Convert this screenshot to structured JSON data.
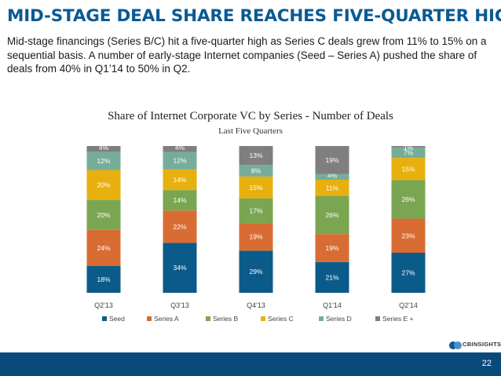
{
  "slide": {
    "headline": "MID-STAGE DEAL SHARE REACHES FIVE-QUARTER HIGH",
    "intro": "Mid-stage financings (Series B/C) hit a five-quarter high as Series C deals grew from 11% to 15% on a sequential basis. A number of early-stage Internet companies (Seed – Series A) pushed the share of deals from 40% in Q1’14 to 50% in Q2.",
    "logo_text": "CBINSIGHTS",
    "page_number": "22"
  },
  "chart_data": {
    "type": "bar",
    "stacked": true,
    "title": "Share of Internet Corporate VC by Series - Number of Deals",
    "subtitle": "Last Five Quarters",
    "categories": [
      "Q2'13",
      "Q3'13",
      "Q4'13",
      "Q1'14",
      "Q2'14"
    ],
    "series": [
      {
        "name": "Seed",
        "color": "#0b5b8a",
        "values": [
          18,
          34,
          29,
          21,
          27
        ],
        "labels": [
          "18%",
          "34%",
          "29%",
          "21%",
          "27%"
        ]
      },
      {
        "name": "Series A",
        "color": "#d96c32",
        "values": [
          24,
          22,
          19,
          19,
          23
        ],
        "labels": [
          "24%",
          "22%",
          "19%",
          "19%",
          "23%"
        ]
      },
      {
        "name": "Series B",
        "color": "#7aa651",
        "values": [
          20,
          14,
          17,
          26,
          26
        ],
        "labels": [
          "20%",
          "14%",
          "17%",
          "26%",
          "26%"
        ]
      },
      {
        "name": "Series C",
        "color": "#e8b00f",
        "values": [
          20,
          14,
          15,
          11,
          15
        ],
        "labels": [
          "20%",
          "14%",
          "15%",
          "11%",
          "15%"
        ]
      },
      {
        "name": "Series D",
        "color": "#76ad99",
        "values": [
          12,
          12,
          8,
          4,
          7
        ],
        "labels": [
          "12%",
          "12%",
          "8%",
          "4%",
          "7%"
        ]
      },
      {
        "name": "Series E +",
        "color": "#7f7f7f",
        "values": [
          4,
          4,
          13,
          19,
          1
        ],
        "labels": [
          "4%",
          "4%",
          "13%",
          "19%",
          "1%"
        ]
      }
    ],
    "ylim": [
      0,
      100
    ],
    "grid": false,
    "legend": "bottom"
  }
}
